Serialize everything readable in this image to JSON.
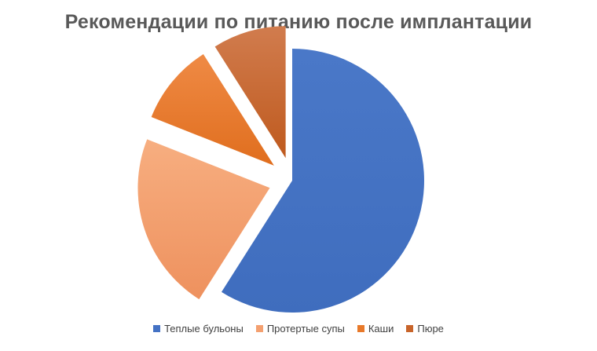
{
  "chart_data": {
    "type": "pie",
    "title": "Рекомендации по питанию после имплантации",
    "categories": [
      "Теплые бульоны",
      "Протертые супы",
      "Каши",
      "Пюре"
    ],
    "values": [
      59,
      22,
      10,
      9
    ],
    "colors": [
      "#4472C4",
      "#F4A070",
      "#E8792A",
      "#C8642A"
    ],
    "exploded": [
      false,
      true,
      true,
      true
    ],
    "legend_position": "bottom"
  }
}
